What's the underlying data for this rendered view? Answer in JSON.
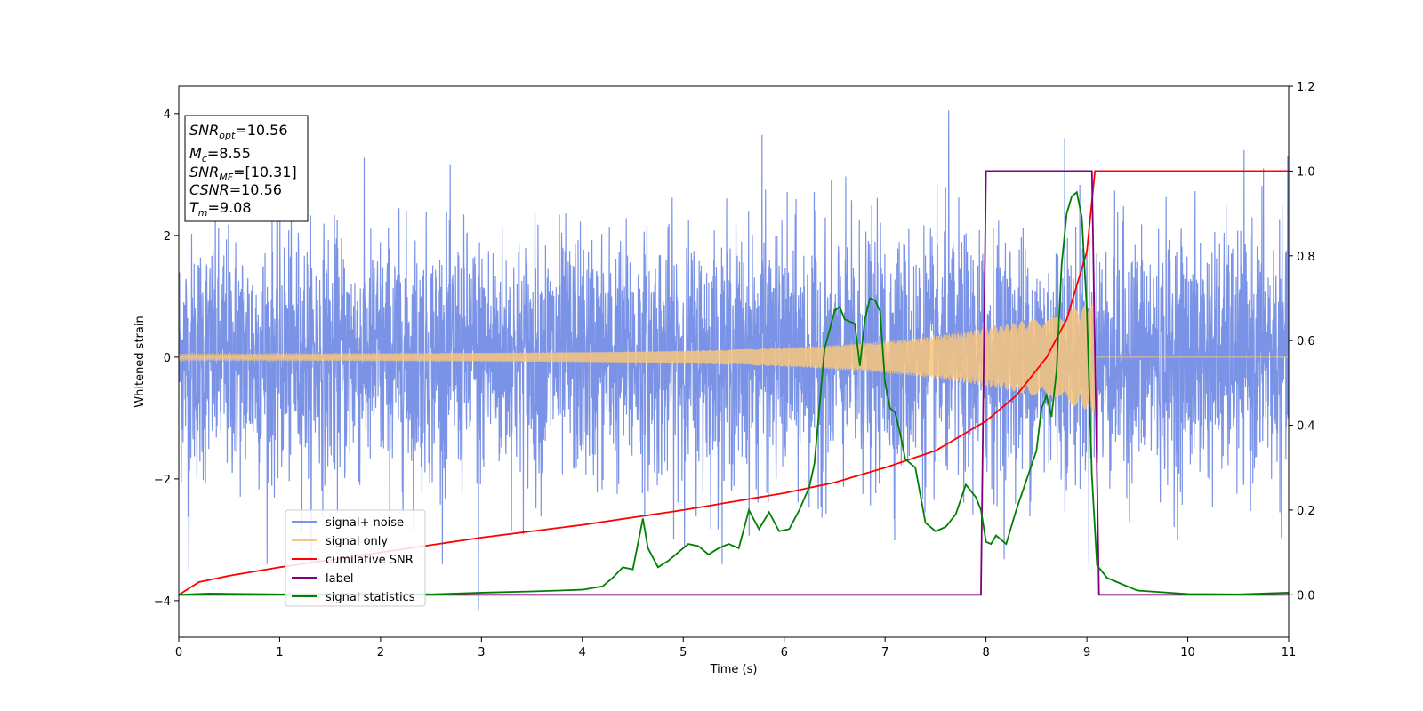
{
  "chart_data": {
    "type": "line",
    "xlabel": "Time (s)",
    "ylabel": "Whitened strain",
    "xlim": [
      0,
      11
    ],
    "ylim_left": [
      -4.6,
      4.45
    ],
    "ylim_right": [
      -0.1,
      1.2
    ],
    "xticks": [
      "0",
      "1",
      "2",
      "3",
      "4",
      "5",
      "6",
      "7",
      "8",
      "9",
      "10",
      "11"
    ],
    "yticks_left": [
      "−4",
      "−2",
      "0",
      "2",
      "4"
    ],
    "yticks_right": [
      "0.0",
      "0.2",
      "0.4",
      "0.6",
      "0.8",
      "1.0",
      "1.2"
    ],
    "stats_box": {
      "snr_opt": {
        "sym": "SNR",
        "sub": "opt",
        "value": "=10.56"
      },
      "mc": {
        "sym": "M",
        "sub": "c",
        "value": "=8.55"
      },
      "snr_mf": {
        "sym": "SNR",
        "sub": "MF",
        "value": "=[10.31]"
      },
      "csnr": {
        "sym": "CSNR",
        "sub": "",
        "value": "=10.56"
      },
      "tm": {
        "sym": "T",
        "sub": "m",
        "value": "=9.08"
      }
    },
    "legend": [
      {
        "label": "signal+ noise",
        "color": "#7b93e6"
      },
      {
        "label": "signal only",
        "color": "#f8c67c"
      },
      {
        "label": "cumilative SNR",
        "color": "#ff0000"
      },
      {
        "label": "label",
        "color": "#800080"
      },
      {
        "label": "signal statistics",
        "color": "#008000"
      }
    ],
    "series": [
      {
        "name": "signal+ noise",
        "axis": "left",
        "color": "#7b93e6",
        "noise_std": 1.0,
        "peaks": [
          [
            7.63,
            4.05
          ],
          [
            8.78,
            3.6
          ],
          [
            5.78,
            3.65
          ],
          [
            10.75,
            3.1
          ],
          [
            2.97,
            -4.15
          ],
          [
            0.1,
            -3.5
          ]
        ]
      },
      {
        "name": "signal only",
        "axis": "left",
        "color": "#f8c67c",
        "chirp_end": 9.08,
        "amp_start": 0.05,
        "amp_end": 0.85
      },
      {
        "name": "cumilative SNR",
        "axis": "right",
        "color": "#ff0000",
        "x": [
          0,
          0.2,
          0.5,
          1,
          2,
          3,
          4,
          5,
          6,
          6.5,
          7,
          7.5,
          8,
          8.3,
          8.6,
          8.8,
          9.0,
          9.08,
          11
        ],
        "y": [
          0.0,
          0.03,
          0.045,
          0.065,
          0.1,
          0.135,
          0.165,
          0.2,
          0.24,
          0.265,
          0.3,
          0.34,
          0.41,
          0.47,
          0.56,
          0.65,
          0.81,
          1.0,
          1.0
        ]
      },
      {
        "name": "label",
        "axis": "right",
        "color": "#800080",
        "x": [
          0,
          7.95,
          8.0,
          9.05,
          9.12,
          11
        ],
        "y": [
          0,
          0,
          1,
          1,
          0,
          0
        ]
      },
      {
        "name": "signal statistics",
        "axis": "right",
        "color": "#008000",
        "x": [
          0,
          0.3,
          1,
          2,
          2.5,
          3,
          3.5,
          4,
          4.2,
          4.3,
          4.4,
          4.5,
          4.55,
          4.6,
          4.65,
          4.75,
          4.85,
          4.95,
          5.05,
          5.15,
          5.25,
          5.35,
          5.45,
          5.55,
          5.65,
          5.75,
          5.85,
          5.95,
          6.05,
          6.15,
          6.25,
          6.3,
          6.4,
          6.5,
          6.55,
          6.6,
          6.7,
          6.75,
          6.8,
          6.85,
          6.9,
          6.95,
          7.0,
          7.05,
          7.1,
          7.15,
          7.2,
          7.3,
          7.4,
          7.5,
          7.6,
          7.7,
          7.8,
          7.9,
          7.95,
          8.0,
          8.05,
          8.1,
          8.15,
          8.2,
          8.3,
          8.4,
          8.5,
          8.55,
          8.6,
          8.65,
          8.7,
          8.75,
          8.8,
          8.85,
          8.9,
          8.95,
          9.0,
          9.05,
          9.1,
          9.2,
          9.3,
          9.5,
          10,
          10.5,
          11
        ],
        "y": [
          0.0,
          0.003,
          0.001,
          0.002,
          0.001,
          0.005,
          0.008,
          0.012,
          0.02,
          0.04,
          0.065,
          0.06,
          0.12,
          0.18,
          0.11,
          0.065,
          0.08,
          0.1,
          0.12,
          0.115,
          0.095,
          0.11,
          0.12,
          0.11,
          0.2,
          0.155,
          0.195,
          0.15,
          0.155,
          0.2,
          0.255,
          0.31,
          0.58,
          0.67,
          0.68,
          0.65,
          0.64,
          0.54,
          0.65,
          0.7,
          0.695,
          0.67,
          0.5,
          0.44,
          0.43,
          0.38,
          0.32,
          0.3,
          0.17,
          0.15,
          0.16,
          0.19,
          0.26,
          0.23,
          0.2,
          0.125,
          0.12,
          0.14,
          0.13,
          0.12,
          0.2,
          0.27,
          0.34,
          0.44,
          0.47,
          0.42,
          0.53,
          0.78,
          0.9,
          0.94,
          0.95,
          0.89,
          0.67,
          0.28,
          0.07,
          0.04,
          0.03,
          0.01,
          0.002,
          0.001,
          0.005
        ]
      }
    ]
  }
}
